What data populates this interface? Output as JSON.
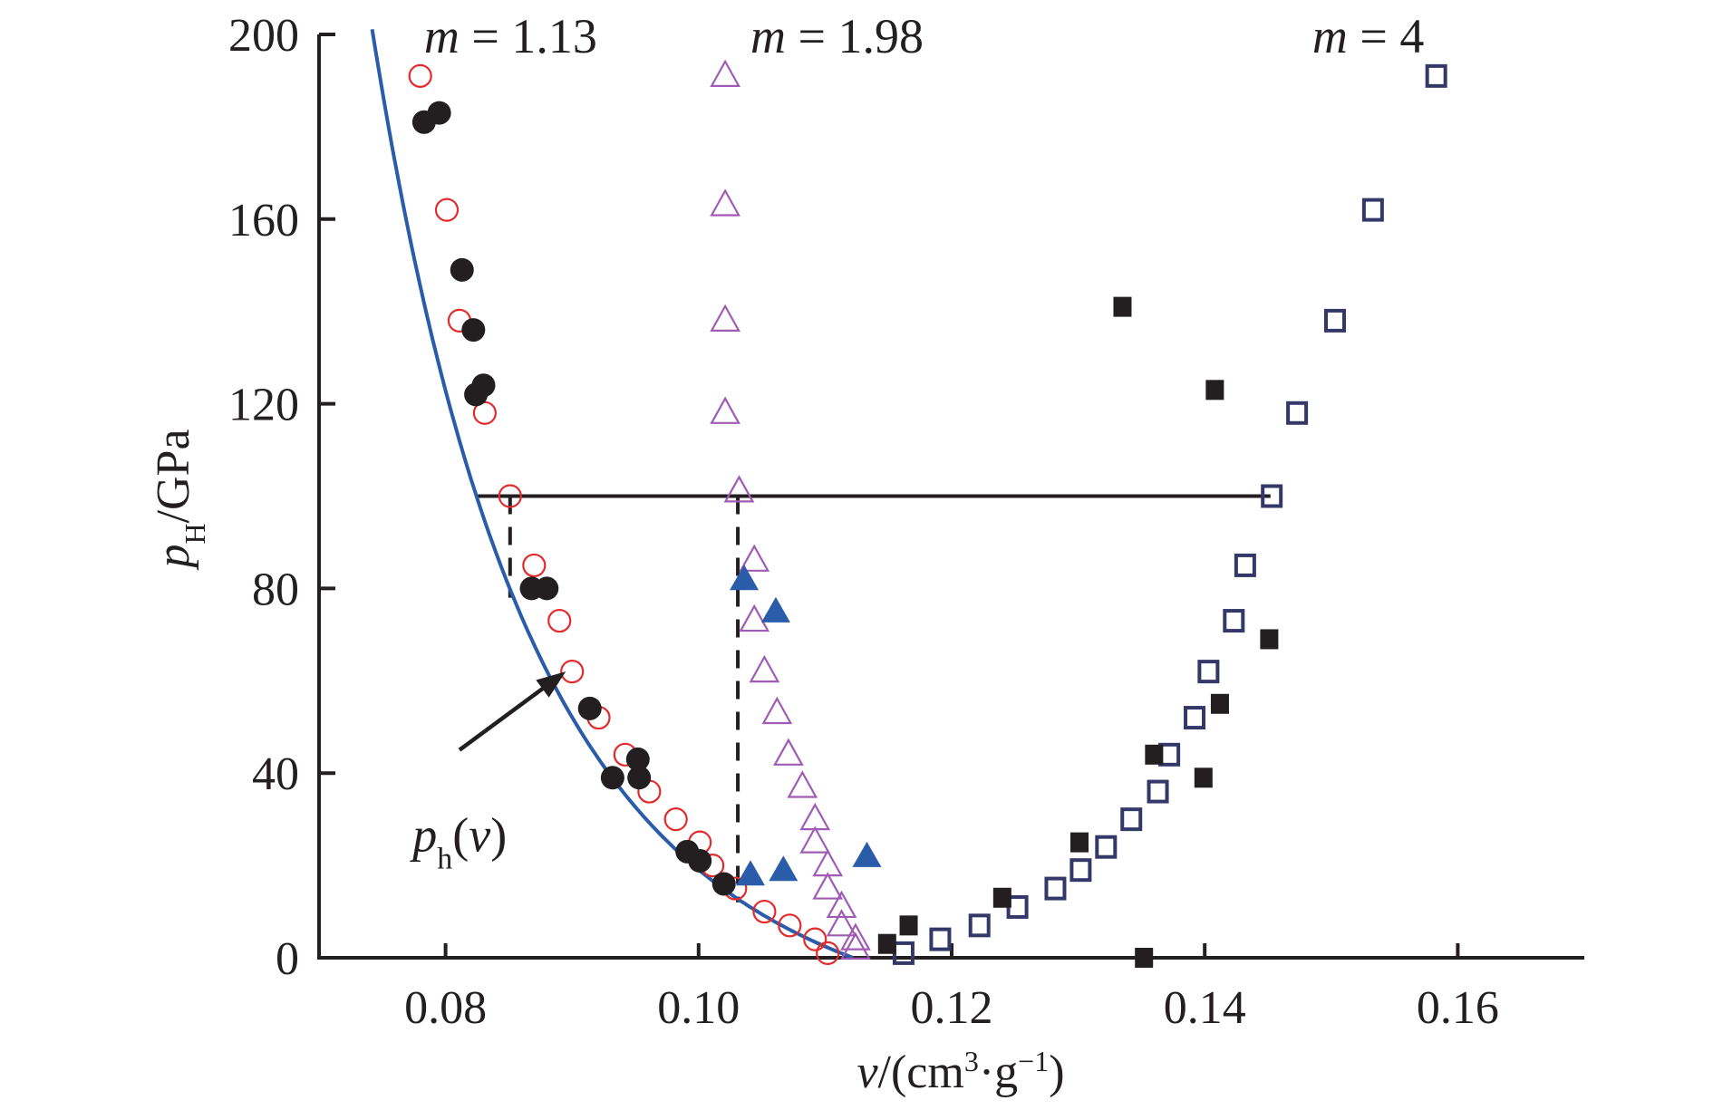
{
  "chart_data": {
    "type": "scatter",
    "title": "",
    "xlabel": "v/(cm³·g⁻¹)",
    "xlabel_parts": {
      "var": "v",
      "unit_pre": "/(cm",
      "sup1": "3",
      "mid": "·g",
      "sup2": "−1",
      "unit_post": ")"
    },
    "ylabel": "pH/GPa",
    "ylabel_parts": {
      "var": "p",
      "sub": "H",
      "unit": "/GPa"
    },
    "xlim": [
      0.07,
      0.17
    ],
    "ylim": [
      0,
      200
    ],
    "xticks": [
      0.08,
      0.1,
      0.12,
      0.14,
      0.16
    ],
    "xtick_labels": [
      "0.08",
      "0.10",
      "0.12",
      "0.14",
      "0.16"
    ],
    "yticks": [
      0,
      40,
      80,
      120,
      160,
      200
    ],
    "ytick_labels": [
      "0",
      "40",
      "80",
      "120",
      "160",
      "200"
    ],
    "grid": false,
    "legend": "none",
    "annotations": [
      {
        "id": "m113",
        "var": "m",
        "text": " = 1.13",
        "x": 0.0783,
        "y": 200
      },
      {
        "id": "m198",
        "var": "m",
        "text": " = 1.98",
        "x": 0.1041,
        "y": 200
      },
      {
        "id": "m4",
        "var": "m",
        "text": " = 4",
        "x": 0.1485,
        "y": 200
      },
      {
        "id": "ph",
        "var": "p",
        "sub": "h",
        "text": "(v)",
        "x": 0.0774,
        "y": 27
      }
    ],
    "arrow": {
      "from": [
        0.0811,
        45
      ],
      "to": [
        0.0895,
        62
      ]
    },
    "reference_lines": {
      "horizontal": {
        "y": 100,
        "x_from": 0.0824,
        "x_to": 0.1452
      },
      "dashed_vertical": [
        {
          "x": 0.0851,
          "y_from": 100,
          "y_to": 78
        },
        {
          "x": 0.1031,
          "y_from": 100,
          "y_to": 12
        }
      ]
    },
    "curve": {
      "name": "ph(v)",
      "color": "#2a5caa",
      "model": "p = A*((v0/v)^n - 1)",
      "A": 20.1,
      "v0": 0.1122,
      "n": 5.8,
      "v_range": [
        0.0742,
        0.1122
      ]
    },
    "series": [
      {
        "name": "m=1.13 filled circles",
        "marker": "circle-filled",
        "color": "#231f20",
        "points": [
          [
            0.0783,
            181
          ],
          [
            0.0795,
            183
          ],
          [
            0.0813,
            149
          ],
          [
            0.0822,
            136
          ],
          [
            0.0824,
            122
          ],
          [
            0.083,
            124
          ],
          [
            0.0868,
            80
          ],
          [
            0.088,
            80
          ],
          [
            0.0914,
            54
          ],
          [
            0.0932,
            39
          ],
          [
            0.0952,
            43
          ],
          [
            0.0953,
            39
          ],
          [
            0.0991,
            23
          ],
          [
            0.1001,
            21
          ],
          [
            0.102,
            16
          ]
        ]
      },
      {
        "name": "m=1.13 open circles",
        "marker": "circle-open",
        "color": "#e32b2b",
        "points": [
          [
            0.078,
            191
          ],
          [
            0.0801,
            162
          ],
          [
            0.0811,
            138
          ],
          [
            0.0831,
            118
          ],
          [
            0.0851,
            100
          ],
          [
            0.087,
            85
          ],
          [
            0.089,
            73
          ],
          [
            0.09,
            62
          ],
          [
            0.0921,
            52
          ],
          [
            0.0942,
            44
          ],
          [
            0.0961,
            36
          ],
          [
            0.0982,
            30
          ],
          [
            0.1001,
            25
          ],
          [
            0.1011,
            20
          ],
          [
            0.1029,
            15
          ],
          [
            0.1052,
            10
          ],
          [
            0.1072,
            7
          ],
          [
            0.1092,
            4
          ],
          [
            0.1102,
            1
          ]
        ]
      },
      {
        "name": "m=1.98 open triangles",
        "marker": "triangle-open",
        "color": "#a05cb4",
        "points": [
          [
            0.1021,
            191
          ],
          [
            0.1021,
            163
          ],
          [
            0.1021,
            138
          ],
          [
            0.1021,
            118
          ],
          [
            0.1032,
            101
          ],
          [
            0.1044,
            86
          ],
          [
            0.1044,
            73
          ],
          [
            0.1052,
            62
          ],
          [
            0.1062,
            53
          ],
          [
            0.1071,
            44
          ],
          [
            0.1082,
            37
          ],
          [
            0.1092,
            30
          ],
          [
            0.1092,
            25
          ],
          [
            0.1102,
            20
          ],
          [
            0.1102,
            15
          ],
          [
            0.1113,
            11
          ],
          [
            0.1113,
            7
          ],
          [
            0.1124,
            4
          ],
          [
            0.1124,
            2
          ]
        ]
      },
      {
        "name": "m=1.98 filled triangles",
        "marker": "triangle-filled",
        "color": "#2a5caa",
        "points": [
          [
            0.1036,
            82
          ],
          [
            0.1061,
            75
          ],
          [
            0.1041,
            18
          ],
          [
            0.1067,
            19
          ],
          [
            0.1133,
            22
          ]
        ]
      },
      {
        "name": "m=4 open squares",
        "marker": "square-open",
        "color": "#343868",
        "points": [
          [
            0.1162,
            1
          ],
          [
            0.1191,
            4
          ],
          [
            0.1222,
            7
          ],
          [
            0.1252,
            11
          ],
          [
            0.1282,
            15
          ],
          [
            0.1302,
            19
          ],
          [
            0.1322,
            24
          ],
          [
            0.1342,
            30
          ],
          [
            0.1363,
            36
          ],
          [
            0.1372,
            44
          ],
          [
            0.1392,
            52
          ],
          [
            0.1403,
            62
          ],
          [
            0.1423,
            73
          ],
          [
            0.1432,
            85
          ],
          [
            0.1453,
            100
          ],
          [
            0.1473,
            118
          ],
          [
            0.1503,
            138
          ],
          [
            0.1533,
            162
          ],
          [
            0.1583,
            191
          ]
        ]
      },
      {
        "name": "m=4 filled squares",
        "marker": "square-filled",
        "color": "#231f20",
        "points": [
          [
            0.1149,
            3
          ],
          [
            0.1166,
            7
          ],
          [
            0.124,
            13
          ],
          [
            0.1301,
            25
          ],
          [
            0.1335,
            141
          ],
          [
            0.1352,
            0
          ],
          [
            0.136,
            44
          ],
          [
            0.1399,
            39
          ],
          [
            0.1408,
            123
          ],
          [
            0.1412,
            55
          ],
          [
            0.1451,
            69
          ]
        ]
      }
    ]
  }
}
